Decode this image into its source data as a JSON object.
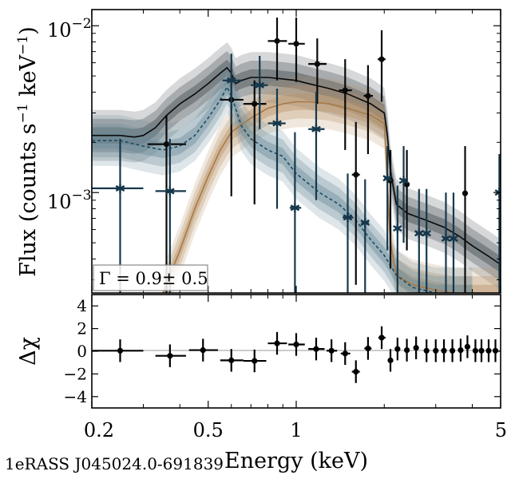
{
  "chart_data": {
    "type": "scatter",
    "source_name": "1eRASS J045024.0-691839",
    "top_panel": {
      "ylabel_main": "Flux (counts s",
      "ylabel_exp1": "−1",
      "ylabel_mid": " keV",
      "ylabel_exp2": "−1",
      "ylabel_end": ")",
      "yscale": "log",
      "ylim": [
        0.00025,
        0.0125
      ],
      "ytick_base": "10",
      "ytick_exp_major1": "−2",
      "ytick_exp_major2": "−3",
      "legend_text": "Γ = 0.9± 0.5",
      "series": [
        {
          "name": "black data",
          "color": "#0a0a0a",
          "marker": "dot",
          "points": [
            {
              "x": 0.36,
              "y": 0.00195,
              "xlo": 0.31,
              "xhi": 0.42,
              "ylo": 0.00025,
              "yhi": 0.0029
            },
            {
              "x": 0.6,
              "y": 0.0036,
              "xlo": 0.55,
              "xhi": 0.66,
              "ylo": 0.00095,
              "yhi": 0.0048
            },
            {
              "x": 0.72,
              "y": 0.0034,
              "xlo": 0.66,
              "xhi": 0.79,
              "ylo": 0.00085,
              "yhi": 0.0047
            },
            {
              "x": 0.86,
              "y": 0.0081,
              "xlo": 0.8,
              "xhi": 0.93,
              "ylo": 0.0047,
              "yhi": 0.0112
            },
            {
              "x": 1.0,
              "y": 0.0078,
              "xlo": 0.94,
              "xhi": 1.07,
              "ylo": 0.0046,
              "yhi": 0.0112
            },
            {
              "x": 1.18,
              "y": 0.0059,
              "xlo": 1.1,
              "xhi": 1.27,
              "ylo": 0.0034,
              "yhi": 0.0084
            },
            {
              "x": 1.47,
              "y": 0.0041,
              "xlo": 1.4,
              "xhi": 1.55,
              "ylo": 0.0018,
              "yhi": 0.0063
            },
            {
              "x": 1.6,
              "y": 0.00128,
              "xlo": 1.55,
              "xhi": 1.65,
              "ylo": 0.00028,
              "yhi": 0.00265
            },
            {
              "x": 1.76,
              "y": 0.0038,
              "xlo": 1.7,
              "xhi": 1.83,
              "ylo": 0.0017,
              "yhi": 0.0058
            },
            {
              "x": 1.96,
              "y": 0.0063,
              "xlo": 1.9,
              "xhi": 2.02,
              "ylo": 0.0035,
              "yhi": 0.0094
            },
            {
              "x": 2.1,
              "y": 0.00118,
              "xlo": 2.05,
              "xhi": 2.15,
              "ylo": 0.00035,
              "yhi": 0.0018
            },
            {
              "x": 2.39,
              "y": 0.00112,
              "xlo": 2.36,
              "xhi": 2.42,
              "ylo": 0.00045,
              "yhi": 0.0018
            },
            {
              "x": 3.78,
              "y": 0.00099,
              "xlo": 3.72,
              "xhi": 3.84,
              "ylo": 0.00025,
              "yhi": 0.0019
            }
          ]
        },
        {
          "name": "blue data",
          "color": "#17384c",
          "marker": "star",
          "points": [
            {
              "x": 0.25,
              "y": 0.00106,
              "xlo": 0.2,
              "xhi": 0.3,
              "ylo": 0.00025,
              "yhi": 0.0021
            },
            {
              "x": 0.37,
              "y": 0.00102,
              "xlo": 0.33,
              "xhi": 0.42,
              "ylo": 0.00025,
              "yhi": 0.0021
            },
            {
              "x": 0.6,
              "y": 0.0047,
              "xlo": 0.56,
              "xhi": 0.65,
              "ylo": 0.00255,
              "yhi": 0.0068
            },
            {
              "x": 0.75,
              "y": 0.0044,
              "xlo": 0.7,
              "xhi": 0.8,
              "ylo": 0.0024,
              "yhi": 0.0066
            },
            {
              "x": 0.86,
              "y": 0.0026,
              "xlo": 0.8,
              "xhi": 0.92,
              "ylo": 0.0008,
              "yhi": 0.0042
            },
            {
              "x": 0.99,
              "y": 0.00081,
              "xlo": 0.95,
              "xhi": 1.04,
              "ylo": 0.00025,
              "yhi": 0.0023
            },
            {
              "x": 1.17,
              "y": 0.0024,
              "xlo": 1.1,
              "xhi": 1.25,
              "ylo": 0.0009,
              "yhi": 0.004
            },
            {
              "x": 1.5,
              "y": 0.00071,
              "xlo": 1.44,
              "xhi": 1.56,
              "ylo": 0.00025,
              "yhi": 0.0013
            },
            {
              "x": 1.72,
              "y": 0.00066,
              "xlo": 1.67,
              "xhi": 1.77,
              "ylo": 0.00025,
              "yhi": 0.0012
            },
            {
              "x": 2.05,
              "y": 0.00122,
              "xlo": 2.0,
              "xhi": 2.1,
              "ylo": 0.00045,
              "yhi": 0.0019
            },
            {
              "x": 2.22,
              "y": 0.00061,
              "xlo": 2.18,
              "xhi": 2.26,
              "ylo": 0.00025,
              "yhi": 0.0011
            },
            {
              "x": 2.33,
              "y": 0.00118,
              "xlo": 2.29,
              "xhi": 2.37,
              "ylo": 0.0005,
              "yhi": 0.0019
            },
            {
              "x": 2.63,
              "y": 0.00057,
              "xlo": 2.57,
              "xhi": 2.69,
              "ylo": 0.00025,
              "yhi": 0.00105
            },
            {
              "x": 2.79,
              "y": 0.00057,
              "xlo": 2.73,
              "xhi": 2.85,
              "ylo": 0.00025,
              "yhi": 0.00105
            },
            {
              "x": 3.25,
              "y": 0.00053,
              "xlo": 3.18,
              "xhi": 3.32,
              "ylo": 0.00025,
              "yhi": 0.001
            },
            {
              "x": 3.45,
              "y": 0.00053,
              "xlo": 3.38,
              "xhi": 3.52,
              "ylo": 0.00025,
              "yhi": 0.001
            },
            {
              "x": 4.95,
              "y": 0.001,
              "xlo": 4.85,
              "xhi": 5.0,
              "ylo": 0.00025,
              "yhi": 0.0017
            }
          ]
        }
      ],
      "models": [
        {
          "name": "total model",
          "color": "#0a0a0a",
          "band_color": "#3e474c",
          "style": "solid",
          "x": [
            0.2,
            0.25,
            0.28,
            0.3,
            0.33,
            0.36,
            0.4,
            0.45,
            0.5,
            0.55,
            0.58,
            0.6,
            0.62,
            0.65,
            0.7,
            0.8,
            0.9,
            1.0,
            1.1,
            1.3,
            1.5,
            1.8,
            2.0,
            2.05,
            2.1,
            2.2,
            2.4,
            2.8,
            3.2,
            3.6,
            4.0,
            4.5,
            5.0
          ],
          "y": [
            0.0022,
            0.0022,
            0.00215,
            0.0022,
            0.00245,
            0.0029,
            0.0034,
            0.0039,
            0.0045,
            0.0052,
            0.0056,
            0.0052,
            0.0045,
            0.0047,
            0.0049,
            0.0049,
            0.0048,
            0.0047,
            0.0045,
            0.0042,
            0.0039,
            0.0034,
            0.003,
            0.0022,
            0.00135,
            0.00085,
            0.00075,
            0.00068,
            0.00062,
            0.00055,
            0.00048,
            0.00042,
            0.00037
          ]
        },
        {
          "name": "component model",
          "color": "#a87a48",
          "band_color": "#b99266",
          "style": "solid",
          "x": [
            0.35,
            0.4,
            0.45,
            0.5,
            0.55,
            0.6,
            0.7,
            0.8,
            0.9,
            1.0,
            1.1,
            1.3,
            1.5,
            1.8,
            2.0,
            2.1,
            2.2,
            2.5,
            3.0,
            3.5,
            4.0,
            4.5,
            5.0
          ],
          "y": [
            0.00025,
            0.00045,
            0.0008,
            0.00125,
            0.0018,
            0.0023,
            0.0028,
            0.0032,
            0.0034,
            0.0035,
            0.0035,
            0.0034,
            0.0032,
            0.0029,
            0.0026,
            0.0005,
            0.00032,
            0.00028,
            0.00026,
            0.00025,
            0.00025,
            0.00025,
            0.00025
          ]
        },
        {
          "name": "soft component model",
          "color": "#1e4a62",
          "band_color": "#6a8a99",
          "style": "dashed",
          "x": [
            0.2,
            0.25,
            0.3,
            0.35,
            0.4,
            0.45,
            0.5,
            0.55,
            0.58,
            0.6,
            0.65,
            0.7,
            0.8,
            0.9,
            1.0,
            1.2,
            1.4,
            1.6,
            1.8,
            2.0,
            2.2,
            2.5,
            3.0,
            3.5,
            4.0
          ],
          "y": [
            0.00205,
            0.00205,
            0.0019,
            0.0018,
            0.0019,
            0.0022,
            0.0028,
            0.0036,
            0.0043,
            0.0038,
            0.0025,
            0.0021,
            0.0018,
            0.00165,
            0.0013,
            0.001,
            0.00085,
            0.00068,
            0.00052,
            0.00042,
            0.00032,
            0.00027,
            0.00025,
            0.00025,
            0.00025
          ]
        }
      ]
    },
    "bottom_panel": {
      "ylabel": "Δχ",
      "ylim": [
        -5.0,
        5.0
      ],
      "yticks": [
        -4,
        -2,
        0,
        2,
        4
      ],
      "ytick_labels": [
        "−4",
        "−2",
        "0",
        "2",
        "4"
      ],
      "points": [
        {
          "x": 0.25,
          "y": 0.05,
          "xlo": 0.2,
          "xhi": 0.3,
          "err": 1.0
        },
        {
          "x": 0.37,
          "y": -0.4,
          "xlo": 0.33,
          "xhi": 0.42,
          "err": 1.0
        },
        {
          "x": 0.48,
          "y": 0.1,
          "xlo": 0.43,
          "xhi": 0.54,
          "err": 1.0
        },
        {
          "x": 0.6,
          "y": -0.8,
          "xlo": 0.55,
          "xhi": 0.66,
          "err": 1.0
        },
        {
          "x": 0.72,
          "y": -0.85,
          "xlo": 0.66,
          "xhi": 0.79,
          "err": 1.0
        },
        {
          "x": 0.86,
          "y": 0.7,
          "xlo": 0.8,
          "xhi": 0.93,
          "err": 1.0
        },
        {
          "x": 1.0,
          "y": 0.6,
          "xlo": 0.94,
          "xhi": 1.07,
          "err": 1.0
        },
        {
          "x": 1.17,
          "y": 0.2,
          "xlo": 1.1,
          "xhi": 1.25,
          "err": 1.0
        },
        {
          "x": 1.32,
          "y": 0.05,
          "xlo": 1.27,
          "xhi": 1.38,
          "err": 1.0
        },
        {
          "x": 1.47,
          "y": -0.2,
          "xlo": 1.42,
          "xhi": 1.53,
          "err": 1.0
        },
        {
          "x": 1.6,
          "y": -1.8,
          "xlo": 1.55,
          "xhi": 1.65,
          "err": 1.0
        },
        {
          "x": 1.76,
          "y": 0.25,
          "xlo": 1.71,
          "xhi": 1.81,
          "err": 1.0
        },
        {
          "x": 1.96,
          "y": 1.2,
          "xlo": 1.91,
          "xhi": 2.02,
          "err": 1.0
        },
        {
          "x": 2.1,
          "y": -0.8,
          "xlo": 2.06,
          "xhi": 2.14,
          "err": 1.0
        },
        {
          "x": 2.22,
          "y": 0.2,
          "xlo": 2.19,
          "xhi": 2.26,
          "err": 1.0
        },
        {
          "x": 2.39,
          "y": 0.1,
          "xlo": 2.35,
          "xhi": 2.43,
          "err": 1.0
        },
        {
          "x": 2.57,
          "y": 0.3,
          "xlo": 2.52,
          "xhi": 2.62,
          "err": 1.0
        },
        {
          "x": 2.79,
          "y": 0.05,
          "xlo": 2.74,
          "xhi": 2.84,
          "err": 1.0
        },
        {
          "x": 3.0,
          "y": 0.05,
          "xlo": 2.95,
          "xhi": 3.05,
          "err": 1.0
        },
        {
          "x": 3.2,
          "y": 0.05,
          "xlo": 3.14,
          "xhi": 3.26,
          "err": 1.0
        },
        {
          "x": 3.42,
          "y": 0.05,
          "xlo": 3.36,
          "xhi": 3.48,
          "err": 1.0
        },
        {
          "x": 3.65,
          "y": 0.1,
          "xlo": 3.59,
          "xhi": 3.71,
          "err": 1.0
        },
        {
          "x": 3.85,
          "y": 0.4,
          "xlo": 3.79,
          "xhi": 3.91,
          "err": 1.0
        },
        {
          "x": 4.1,
          "y": 0.05,
          "xlo": 4.03,
          "xhi": 4.17,
          "err": 1.0
        },
        {
          "x": 4.3,
          "y": 0.05,
          "xlo": 4.23,
          "xhi": 4.37,
          "err": 1.0
        },
        {
          "x": 4.55,
          "y": 0.05,
          "xlo": 4.48,
          "xhi": 4.62,
          "err": 1.0
        },
        {
          "x": 4.8,
          "y": 0.05,
          "xlo": 4.73,
          "xhi": 4.87,
          "err": 1.0
        }
      ]
    },
    "xaxis": {
      "label": "Energy (keV)",
      "scale": "log",
      "xlim": [
        0.2,
        5.0
      ],
      "ticks": [
        0.2,
        0.5,
        1,
        5
      ],
      "tick_labels": [
        "0.2",
        "0.5",
        "1",
        "5"
      ]
    }
  }
}
